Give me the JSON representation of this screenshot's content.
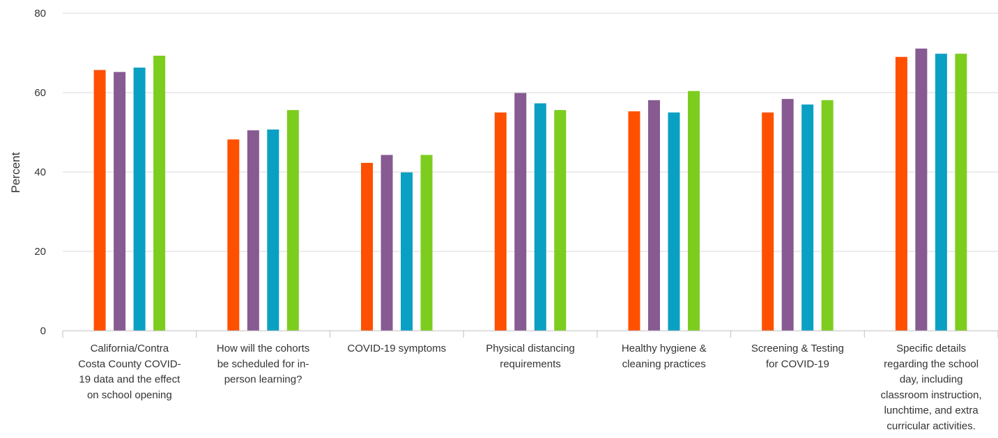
{
  "chart_data": {
    "type": "bar",
    "title": "",
    "xlabel": "",
    "ylabel": "Percent",
    "ylim": [
      0,
      80
    ],
    "yticks": [
      "0",
      "20",
      "40",
      "60",
      "80"
    ],
    "grid": true,
    "legend": "none",
    "categories": [
      [
        "California/Contra",
        "Costa County COVID-",
        "19 data and the effect",
        "on school opening"
      ],
      [
        "How will the cohorts",
        "be scheduled for in-",
        "person learning?"
      ],
      [
        "COVID-19 symptoms"
      ],
      [
        "Physical distancing",
        "requirements"
      ],
      [
        "Healthy hygiene &",
        "cleaning practices"
      ],
      [
        "Screening & Testing",
        "for COVID-19"
      ],
      [
        "Specific details",
        "regarding the school",
        "day, including",
        "classroom instruction,",
        "lunchtime, and extra",
        "curricular activities."
      ]
    ],
    "series": [
      {
        "color": "#ff5000",
        "values": [
          65.7,
          48.2,
          42.3,
          55.0,
          55.3,
          55.0,
          69.0
        ]
      },
      {
        "color": "#875a91",
        "values": [
          65.2,
          50.5,
          44.3,
          59.9,
          58.1,
          58.4,
          71.1
        ]
      },
      {
        "color": "#0aa0c3",
        "values": [
          66.3,
          50.7,
          39.9,
          57.3,
          55.0,
          57.0,
          69.8
        ]
      },
      {
        "color": "#7dcd1e",
        "values": [
          69.3,
          55.6,
          44.3,
          55.6,
          60.4,
          58.1,
          69.8
        ]
      }
    ]
  }
}
